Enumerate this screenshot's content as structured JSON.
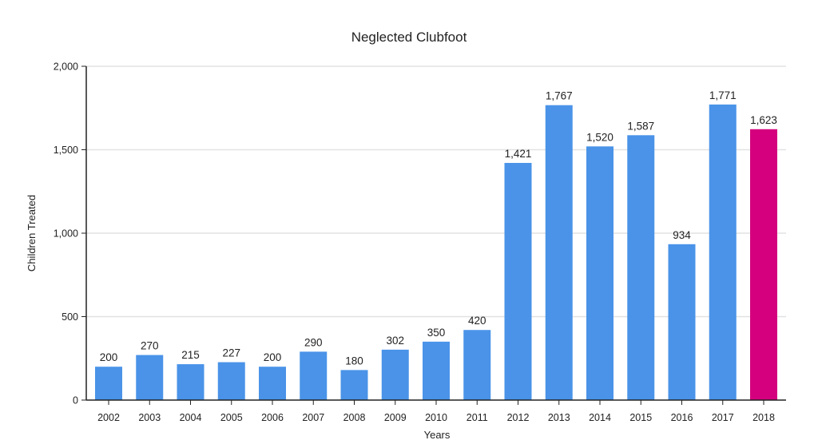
{
  "chart_data": {
    "type": "bar",
    "title": "Neglected Clubfoot",
    "xlabel": "Years",
    "ylabel": "Children Treated",
    "categories": [
      "2002",
      "2003",
      "2004",
      "2005",
      "2006",
      "2007",
      "2008",
      "2009",
      "2010",
      "2011",
      "2012",
      "2013",
      "2014",
      "2015",
      "2016",
      "2017",
      "2018"
    ],
    "values": [
      200,
      270,
      215,
      227,
      200,
      290,
      180,
      302,
      350,
      420,
      1421,
      1767,
      1520,
      1587,
      934,
      1771,
      1623
    ],
    "data_labels": [
      "200",
      "270",
      "215",
      "227",
      "200",
      "290",
      "180",
      "302",
      "350",
      "420",
      "1,421",
      "1,767",
      "1,520",
      "1,587",
      "934",
      "1,771",
      "1,623"
    ],
    "ylim": [
      0,
      2000
    ],
    "yticks": [
      0,
      500,
      1000,
      1500,
      2000
    ],
    "ytick_labels": [
      "0",
      "500",
      "1,000",
      "1,500",
      "2,000"
    ],
    "grid": true,
    "legend": "none",
    "colors": {
      "bar": "#4a93e8",
      "highlight": "#d4007e",
      "highlight_category": "2018",
      "grid": "#e2e2e2",
      "axis": "#222222"
    }
  }
}
